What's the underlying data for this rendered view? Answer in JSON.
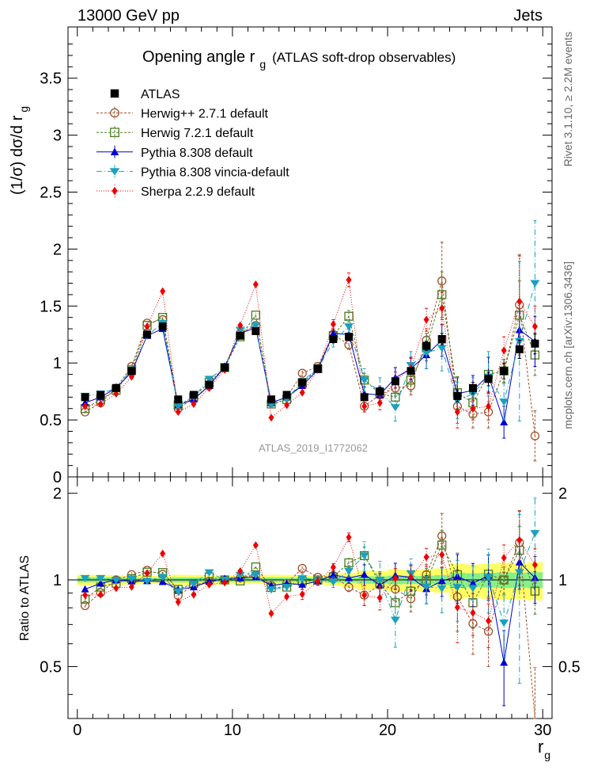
{
  "header": {
    "left": "13000 GeV pp",
    "right": "Jets"
  },
  "side_labels": {
    "rivet": "Rivet 3.1.10, ≥ 2.2M events",
    "mcplots": "mcplots.cern.ch [arXiv:1306.3436]"
  },
  "chart_data": {
    "type": "scatter",
    "title": "Opening angle r",
    "title_subscript": "g",
    "title_suffix": "(ATLAS soft-drop observables)",
    "analysis_id": "ATLAS_2019_I1772062",
    "xlabel": "r",
    "xlabel_subscript": "g",
    "ylabel": "(1/σ) dσ/d r",
    "ylabel_subscript": "g",
    "ratio_ylabel": "Ratio to ATLAS",
    "xlim": [
      -0.6,
      30.6
    ],
    "ylim": [
      0,
      3.95
    ],
    "ratio_ylim": [
      0.33,
      2.28
    ],
    "x_ticks": [
      0,
      10,
      20,
      30
    ],
    "y_ticks": [
      0,
      0.5,
      1,
      1.5,
      2,
      2.5,
      3,
      3.5
    ],
    "y_tick_labels": [
      "0",
      "0.5",
      "1",
      "1.5",
      "2",
      "2.5",
      "3",
      "3.5"
    ],
    "ratio_ticks": [
      0.5,
      1,
      2
    ],
    "ratio_tick_labels": [
      "0.5",
      "1",
      "2"
    ],
    "legend_position": "top-left",
    "x": [
      0.5,
      1.5,
      2.5,
      3.5,
      4.5,
      5.5,
      6.5,
      7.5,
      8.5,
      9.5,
      10.5,
      11.5,
      12.5,
      13.5,
      14.5,
      15.5,
      16.5,
      17.5,
      18.5,
      19.5,
      20.5,
      21.5,
      22.5,
      23.5,
      24.5,
      25.5,
      26.5,
      27.5,
      28.5,
      29.5
    ],
    "series": [
      {
        "name": "ATLAS",
        "color": "#000000",
        "marker": "square-filled",
        "values": [
          0.7,
          0.72,
          0.78,
          0.93,
          1.25,
          1.32,
          0.68,
          0.72,
          0.81,
          0.96,
          1.24,
          1.28,
          0.68,
          0.72,
          0.83,
          0.95,
          1.21,
          1.23,
          0.7,
          0.75,
          0.84,
          0.93,
          1.15,
          1.21,
          0.71,
          0.78,
          0.86,
          0.93,
          1.12,
          1.17
        ],
        "errors": [
          0.01,
          0.01,
          0.01,
          0.01,
          0.01,
          0.01,
          0.01,
          0.01,
          0.01,
          0.01,
          0.01,
          0.01,
          0.01,
          0.01,
          0.01,
          0.01,
          0.02,
          0.02,
          0.02,
          0.02,
          0.03,
          0.03,
          0.04,
          0.05,
          0.05,
          0.05,
          0.06,
          0.07,
          0.08,
          0.09
        ]
      },
      {
        "name": "Herwig++ 2.7.1 default",
        "color": "#a0522d",
        "marker": "circle-open",
        "values": [
          0.57,
          0.65,
          0.78,
          0.97,
          1.35,
          1.38,
          0.6,
          0.69,
          0.8,
          0.96,
          1.26,
          1.33,
          0.65,
          0.7,
          0.91,
          0.97,
          1.25,
          1.16,
          0.62,
          0.72,
          0.78,
          0.8,
          1.2,
          1.72,
          0.62,
          0.55,
          0.57,
          0.93,
          1.51,
          0.36
        ],
        "errors": [
          0.01,
          0.01,
          0.02,
          0.02,
          0.02,
          0.02,
          0.02,
          0.02,
          0.02,
          0.02,
          0.02,
          0.02,
          0.02,
          0.02,
          0.03,
          0.03,
          0.04,
          0.04,
          0.05,
          0.06,
          0.07,
          0.08,
          0.1,
          0.34,
          0.15,
          0.12,
          0.14,
          0.1,
          0.44,
          0.22
        ]
      },
      {
        "name": "Herwig 7.2.1 default",
        "color": "#4b7a1e",
        "marker": "square-open",
        "values": [
          0.6,
          0.68,
          0.76,
          0.94,
          1.33,
          1.4,
          0.63,
          0.7,
          0.83,
          0.96,
          1.23,
          1.42,
          0.64,
          0.68,
          0.82,
          0.95,
          1.24,
          1.41,
          0.85,
          0.73,
          0.7,
          0.85,
          1.14,
          1.6,
          0.74,
          0.65,
          0.9,
          0.93,
          1.42,
          1.07
        ],
        "errors": [
          0.01,
          0.01,
          0.02,
          0.02,
          0.02,
          0.02,
          0.02,
          0.02,
          0.02,
          0.02,
          0.02,
          0.02,
          0.02,
          0.02,
          0.03,
          0.03,
          0.04,
          0.05,
          0.06,
          0.07,
          0.08,
          0.1,
          0.12,
          0.2,
          0.14,
          0.12,
          0.15,
          0.1,
          0.3,
          0.18
        ]
      },
      {
        "name": "Pythia 8.308 default",
        "color": "#0000cc",
        "marker": "triangle-up-filled",
        "values": [
          0.65,
          0.7,
          0.78,
          0.92,
          1.24,
          1.3,
          0.63,
          0.68,
          0.8,
          0.97,
          1.26,
          1.31,
          0.65,
          0.7,
          0.8,
          0.94,
          1.26,
          1.25,
          0.73,
          0.72,
          0.87,
          0.95,
          1.07,
          1.2,
          0.73,
          0.76,
          0.89,
          0.48,
          1.29,
          1.19
        ],
        "errors": [
          0.01,
          0.01,
          0.02,
          0.02,
          0.02,
          0.02,
          0.02,
          0.02,
          0.02,
          0.02,
          0.02,
          0.02,
          0.02,
          0.02,
          0.03,
          0.03,
          0.04,
          0.05,
          0.06,
          0.07,
          0.09,
          0.1,
          0.12,
          0.14,
          0.14,
          0.13,
          0.16,
          0.14,
          0.25,
          0.22
        ]
      },
      {
        "name": "Pythia 8.308 vincia-default",
        "color": "#1ba0c0",
        "marker": "triangle-down-filled",
        "values": [
          0.71,
          0.73,
          0.78,
          0.94,
          1.24,
          1.35,
          0.62,
          0.7,
          0.86,
          0.96,
          1.29,
          1.33,
          0.63,
          0.68,
          0.84,
          0.95,
          1.19,
          1.32,
          0.85,
          0.75,
          0.61,
          0.98,
          1.09,
          1.13,
          0.67,
          0.73,
          0.88,
          0.66,
          1.19,
          1.7
        ],
        "errors": [
          0.01,
          0.01,
          0.02,
          0.02,
          0.02,
          0.02,
          0.02,
          0.02,
          0.02,
          0.02,
          0.02,
          0.02,
          0.02,
          0.02,
          0.03,
          0.03,
          0.05,
          0.06,
          0.1,
          0.12,
          0.12,
          0.12,
          0.14,
          0.2,
          0.16,
          0.14,
          0.22,
          0.16,
          0.7,
          0.55
        ]
      },
      {
        "name": "Sherpa 2.2.9 default",
        "color": "#ee0000",
        "marker": "diamond-filled",
        "values": [
          0.62,
          0.64,
          0.73,
          0.88,
          1.32,
          1.63,
          0.57,
          0.64,
          0.78,
          0.94,
          1.33,
          1.69,
          0.52,
          0.63,
          0.74,
          0.94,
          1.34,
          1.73,
          0.62,
          0.65,
          0.85,
          0.95,
          1.38,
          1.48,
          0.57,
          0.6,
          0.62,
          1.11,
          1.54,
          1.32
        ],
        "errors": [
          0.01,
          0.01,
          0.02,
          0.02,
          0.02,
          0.02,
          0.02,
          0.02,
          0.02,
          0.02,
          0.02,
          0.02,
          0.02,
          0.02,
          0.03,
          0.03,
          0.04,
          0.06,
          0.05,
          0.06,
          0.07,
          0.09,
          0.1,
          0.14,
          0.14,
          0.1,
          0.12,
          0.12,
          0.4,
          0.18
        ]
      }
    ]
  }
}
